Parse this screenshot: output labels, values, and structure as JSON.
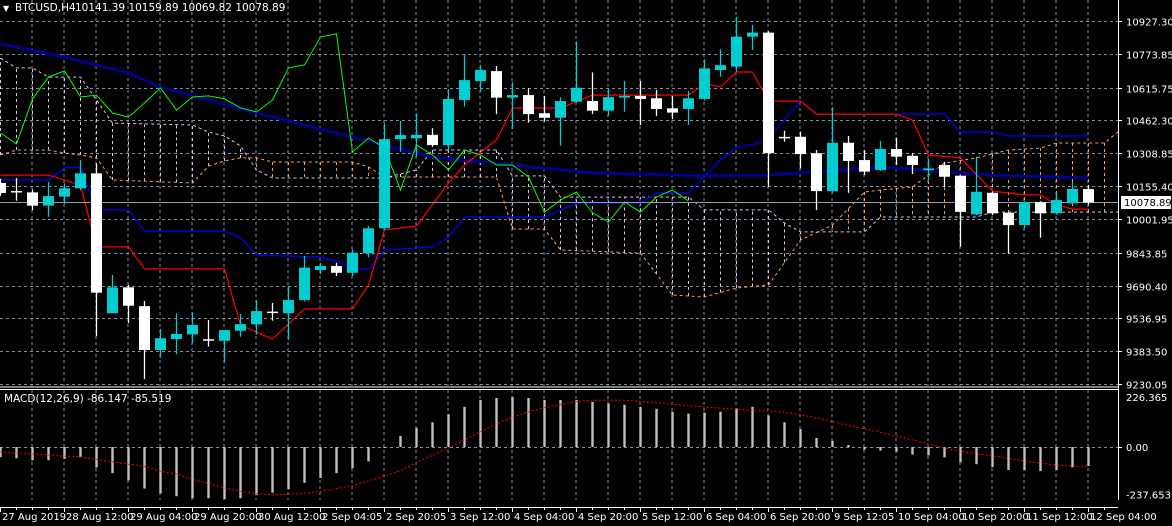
{
  "header": {
    "menu_icon": "triangle-down-icon",
    "symbol": "BTCUSD,H4",
    "ohlc": "10141.39 10159.89 10069.82 10078.89"
  },
  "colors": {
    "background": "#000000",
    "grid": "#7f8fa6",
    "bull_candle": "#00ced1",
    "bear_candle": "#ffffff",
    "moving_average": "#00008b",
    "tenkan": "#ff0000",
    "kijun": "#0000ff",
    "chikou": "#00ff00",
    "senkou_a": "#f4a460",
    "senkou_b": "#e6c3e6",
    "macd_histogram": "#c0c0c0",
    "macd_signal": "#ff0000",
    "price_line": "#8c9bb0"
  },
  "price_axis": {
    "labels": [
      "10927.30",
      "10773.85",
      "10615.75",
      "10462.30",
      "10308.85",
      "10155.40",
      "10001.95",
      "9843.85",
      "9690.40",
      "9536.95",
      "9383.50",
      "9230.05"
    ],
    "current_price": "10078.89"
  },
  "macd": {
    "label": "MACD(12,26,9) -86.147 -85.519",
    "axis_labels": {
      "max": "226.365",
      "zero": "0.00",
      "min": "-237.653"
    },
    "histogram": [
      -46,
      -51,
      -60,
      -60,
      -54,
      -46,
      -93,
      -118,
      -151,
      -188,
      -210,
      -223,
      -232,
      -232,
      -236,
      -232,
      -218,
      -207,
      -192,
      -162,
      -140,
      -118,
      -96,
      -65,
      -4,
      50,
      87,
      112,
      148,
      182,
      213,
      222,
      226,
      222,
      213,
      213,
      213,
      204,
      197,
      191,
      182,
      173,
      160,
      151,
      156,
      160,
      175,
      182,
      143,
      112,
      81,
      41,
      28,
      9,
      -12,
      -16,
      -21,
      -34,
      -38,
      -47,
      -69,
      -78,
      -91,
      -104,
      -104,
      -109,
      -104,
      -92,
      -86.147
    ],
    "signal": [
      -22,
      -27,
      -32,
      -37,
      -41,
      -44,
      -56,
      -67,
      -78,
      -88,
      -110,
      -122,
      -147,
      -165,
      -185,
      -200,
      -212,
      -216,
      -215,
      -209,
      -200,
      -188,
      -175,
      -154,
      -131,
      -107,
      -72,
      -37,
      -4,
      32,
      69,
      106,
      135,
      159,
      178,
      192,
      206,
      212,
      212,
      212,
      207,
      201,
      194,
      187,
      181,
      175,
      172,
      168,
      163,
      157,
      146,
      132,
      116,
      98,
      82,
      66,
      50,
      32,
      13,
      -4,
      -19,
      -31,
      -40,
      -51,
      -63,
      -74,
      -81,
      -88,
      -85.519
    ]
  },
  "time_axis": {
    "labels": [
      "27 Aug 2019",
      "28 Aug 12:00",
      "29 Aug 04:00",
      "29 Aug 20:00",
      "30 Aug 12:00",
      "2 Sep 04:05",
      "2 Sep 20:05",
      "3 Sep 12:00",
      "4 Sep 04:00",
      "4 Sep 20:00",
      "5 Sep 12:00",
      "6 Sep 04:00",
      "6 Sep 20:00",
      "9 Sep 12:05",
      "10 Sep 04:00",
      "10 Sep 20:00",
      "11 Sep 12:00",
      "12 Sep 04:00"
    ]
  },
  "chart_data": {
    "type": "candlestick",
    "symbol": "BTCUSD",
    "timeframe": "H4",
    "ylim": [
      9230.05,
      10927.3
    ],
    "grid": true,
    "candles_ohlc": [
      [
        10170,
        10190,
        10110,
        10123
      ],
      [
        10129,
        10193,
        10087,
        10129
      ],
      [
        10126,
        10140,
        10043,
        10064
      ],
      [
        10064,
        10176,
        10012,
        10109
      ],
      [
        10106,
        10168,
        10071,
        10145
      ],
      [
        10145,
        10277,
        10137,
        10215
      ],
      [
        10215,
        10262,
        9454,
        9657
      ],
      [
        9561,
        9740,
        9561,
        9682
      ],
      [
        9682,
        9693,
        9515,
        9596
      ],
      [
        9594,
        9618,
        9253,
        9389
      ],
      [
        9389,
        9487,
        9353,
        9444
      ],
      [
        9440,
        9560,
        9369,
        9464
      ],
      [
        9462,
        9565,
        9420,
        9506
      ],
      [
        9436,
        9529,
        9405,
        9436
      ],
      [
        9432,
        9482,
        9331,
        9482
      ],
      [
        9479,
        9557,
        9451,
        9510
      ],
      [
        9509,
        9623,
        9462,
        9571
      ],
      [
        9565,
        9609,
        9526,
        9565
      ],
      [
        9561,
        9689,
        9436,
        9623
      ],
      [
        9623,
        9828,
        9615,
        9774
      ],
      [
        9763,
        9797,
        9744,
        9782
      ],
      [
        9782,
        9797,
        9735,
        9750
      ],
      [
        9750,
        9860,
        9735,
        9844
      ],
      [
        9841,
        9969,
        9822,
        9958
      ],
      [
        9958,
        10449,
        9950,
        10375
      ],
      [
        10375,
        10460,
        10316,
        10394
      ],
      [
        10379,
        10496,
        10293,
        10395
      ],
      [
        10395,
        10426,
        10339,
        10347
      ],
      [
        10347,
        10609,
        10320,
        10563
      ],
      [
        10558,
        10773,
        10527,
        10651
      ],
      [
        10646,
        10721,
        10597,
        10698
      ],
      [
        10693,
        10717,
        10492,
        10569
      ],
      [
        10569,
        10641,
        10422,
        10581
      ],
      [
        10581,
        10613,
        10452,
        10492
      ],
      [
        10496,
        10577,
        10457,
        10475
      ],
      [
        10475,
        10571,
        10344,
        10553
      ],
      [
        10550,
        10831,
        10545,
        10615
      ],
      [
        10553,
        10687,
        10492,
        10508
      ],
      [
        10508,
        10613,
        10485,
        10571
      ],
      [
        10569,
        10647,
        10503,
        10577
      ],
      [
        10577,
        10647,
        10441,
        10563
      ],
      [
        10566,
        10605,
        10483,
        10516
      ],
      [
        10519,
        10577,
        10468,
        10499
      ],
      [
        10516,
        10600,
        10441,
        10566
      ],
      [
        10563,
        10748,
        10555,
        10706
      ],
      [
        10698,
        10795,
        10667,
        10721
      ],
      [
        10714,
        10947,
        10690,
        10854
      ],
      [
        10854,
        10909,
        10792,
        10873
      ],
      [
        10873,
        10880,
        10152,
        10309
      ],
      [
        10382,
        10414,
        10363,
        10382
      ],
      [
        10386,
        10410,
        10238,
        10305
      ],
      [
        10309,
        10324,
        10043,
        10132
      ],
      [
        10132,
        10524,
        10125,
        10358
      ],
      [
        10358,
        10390,
        10124,
        10273
      ],
      [
        10277,
        10324,
        10207,
        10223
      ],
      [
        10231,
        10366,
        10226,
        10329
      ],
      [
        10329,
        10382,
        10254,
        10293
      ],
      [
        10297,
        10309,
        10212,
        10254
      ],
      [
        10230,
        10282,
        10184,
        10238
      ],
      [
        10254,
        10269,
        10152,
        10199
      ],
      [
        10204,
        10204,
        9872,
        10035
      ],
      [
        10023,
        10293,
        10020,
        10129
      ],
      [
        10124,
        10130,
        10020,
        10028
      ],
      [
        10031,
        10031,
        9841,
        9973
      ],
      [
        9973,
        10085,
        9958,
        10080
      ],
      [
        10080,
        10085,
        9914,
        10028
      ],
      [
        10028,
        10122,
        10022,
        10090
      ],
      [
        10075,
        10176,
        10070,
        10142
      ],
      [
        10141.39,
        10159.89,
        10069.82,
        10078.89
      ]
    ],
    "moving_average": [
      [
        0,
        10820
      ],
      [
        4,
        10759
      ],
      [
        8,
        10684
      ],
      [
        10,
        10619
      ],
      [
        16,
        10497
      ],
      [
        24,
        10347
      ],
      [
        27,
        10291
      ],
      [
        37,
        10217
      ],
      [
        44,
        10203
      ],
      [
        48,
        10207
      ],
      [
        55,
        10245
      ],
      [
        62,
        10207
      ],
      [
        68,
        10193
      ]
    ],
    "tenkan": [
      [
        0,
        10207
      ],
      [
        3,
        10207
      ],
      [
        5,
        10160
      ],
      [
        6,
        9871
      ],
      [
        8,
        9871
      ],
      [
        9,
        9768
      ],
      [
        14,
        9768
      ],
      [
        15,
        9506
      ],
      [
        17,
        9440
      ],
      [
        18,
        9510
      ],
      [
        19,
        9581
      ],
      [
        22,
        9581
      ],
      [
        23,
        9693
      ],
      [
        24,
        9950
      ],
      [
        26,
        9969
      ],
      [
        28,
        10170
      ],
      [
        29,
        10254
      ],
      [
        31,
        10371
      ],
      [
        32,
        10520
      ],
      [
        35,
        10520
      ],
      [
        37,
        10581
      ],
      [
        43,
        10581
      ],
      [
        44,
        10633
      ],
      [
        45,
        10619
      ],
      [
        46,
        10689
      ],
      [
        47,
        10689
      ],
      [
        48,
        10553
      ],
      [
        50,
        10553
      ],
      [
        51,
        10492
      ],
      [
        56,
        10492
      ],
      [
        57,
        10464
      ],
      [
        58,
        10301
      ],
      [
        60,
        10287
      ],
      [
        62,
        10132
      ],
      [
        64,
        10114
      ],
      [
        65,
        10114
      ],
      [
        66,
        10067
      ],
      [
        67,
        10048
      ],
      [
        68,
        10048
      ]
    ],
    "kijun": [
      [
        0,
        10184
      ],
      [
        3,
        10184
      ],
      [
        4,
        10240
      ],
      [
        5,
        10245
      ],
      [
        6,
        10043
      ],
      [
        8,
        10043
      ],
      [
        9,
        9945
      ],
      [
        14,
        9945
      ],
      [
        15,
        9913
      ],
      [
        16,
        9833
      ],
      [
        20,
        9824
      ],
      [
        21,
        9805
      ],
      [
        22,
        9768
      ],
      [
        23,
        9768
      ],
      [
        24,
        9857
      ],
      [
        27,
        9871
      ],
      [
        28,
        9917
      ],
      [
        29,
        10011
      ],
      [
        34,
        10011
      ],
      [
        35,
        10043
      ],
      [
        36,
        10076
      ],
      [
        40,
        10076
      ],
      [
        41,
        10123
      ],
      [
        43,
        10123
      ],
      [
        45,
        10277
      ],
      [
        46,
        10338
      ],
      [
        47,
        10347
      ],
      [
        48,
        10380
      ],
      [
        50,
        10553
      ],
      [
        51,
        10492
      ],
      [
        59,
        10492
      ],
      [
        60,
        10408
      ],
      [
        62,
        10408
      ],
      [
        63,
        10390
      ],
      [
        68,
        10390
      ]
    ],
    "chikou": [
      [
        0,
        10404
      ],
      [
        1,
        10352
      ],
      [
        2,
        10563
      ],
      [
        3,
        10665
      ],
      [
        4,
        10694
      ],
      [
        5,
        10572
      ],
      [
        6,
        10581
      ],
      [
        7,
        10497
      ],
      [
        8,
        10478
      ],
      [
        9,
        10544
      ],
      [
        10,
        10614
      ],
      [
        11,
        10511
      ],
      [
        12,
        10572
      ],
      [
        13,
        10577
      ],
      [
        14,
        10563
      ],
      [
        15,
        10521
      ],
      [
        16,
        10502
      ],
      [
        17,
        10558
      ],
      [
        18,
        10708
      ],
      [
        19,
        10722
      ],
      [
        20,
        10853
      ],
      [
        21,
        10867
      ],
      [
        22,
        10315
      ],
      [
        23,
        10380
      ],
      [
        24,
        10334
      ],
      [
        25,
        10137
      ],
      [
        26,
        10348
      ],
      [
        27,
        10301
      ],
      [
        28,
        10231
      ],
      [
        29,
        10324
      ],
      [
        30,
        10301
      ],
      [
        31,
        10254
      ],
      [
        32,
        10254
      ],
      [
        33,
        10198
      ],
      [
        34,
        10034
      ],
      [
        35,
        10090
      ],
      [
        36,
        10128
      ],
      [
        37,
        10030
      ],
      [
        38,
        9988
      ],
      [
        39,
        10081
      ],
      [
        40,
        10034
      ],
      [
        41,
        10104
      ],
      [
        42,
        10137
      ],
      [
        43,
        10086
      ]
    ],
    "senkou_a": [
      [
        0,
        10301
      ],
      [
        1,
        10324
      ],
      [
        3,
        10324
      ],
      [
        4,
        10310
      ],
      [
        5,
        10301
      ],
      [
        6,
        10287
      ],
      [
        7,
        10184
      ],
      [
        12,
        10170
      ],
      [
        13,
        10249
      ],
      [
        14,
        10273
      ],
      [
        15,
        10287
      ],
      [
        16,
        10287
      ],
      [
        17,
        10268
      ],
      [
        22,
        10268
      ],
      [
        23,
        10245
      ],
      [
        24,
        10198
      ],
      [
        31,
        10198
      ],
      [
        32,
        9955
      ],
      [
        34,
        9955
      ],
      [
        35,
        9857
      ],
      [
        40,
        9842
      ],
      [
        42,
        9646
      ],
      [
        44,
        9637
      ],
      [
        46,
        9679
      ],
      [
        48,
        9693
      ],
      [
        50,
        9903
      ],
      [
        52,
        9973
      ],
      [
        54,
        10128
      ],
      [
        55,
        10137
      ],
      [
        57,
        10151
      ],
      [
        59,
        10263
      ],
      [
        61,
        10287
      ],
      [
        63,
        10324
      ],
      [
        65,
        10333
      ],
      [
        66,
        10357
      ],
      [
        69,
        10357
      ],
      [
        70,
        10418
      ]
    ],
    "senkou_b": [
      [
        0,
        10754
      ],
      [
        1,
        10708
      ],
      [
        2,
        10708
      ],
      [
        3,
        10665
      ],
      [
        5,
        10665
      ],
      [
        6,
        10558
      ],
      [
        7,
        10450
      ],
      [
        12,
        10441
      ],
      [
        13,
        10408
      ],
      [
        14,
        10390
      ],
      [
        15,
        10343
      ],
      [
        16,
        10231
      ],
      [
        17,
        10193
      ],
      [
        24,
        10193
      ],
      [
        26,
        10231
      ],
      [
        27,
        10324
      ],
      [
        31,
        10324
      ],
      [
        32,
        10203
      ],
      [
        34,
        10203
      ],
      [
        35,
        10104
      ],
      [
        43,
        10104
      ],
      [
        44,
        10044
      ],
      [
        48,
        10044
      ],
      [
        49,
        9983
      ],
      [
        50,
        9941
      ],
      [
        54,
        9941
      ],
      [
        55,
        10011
      ],
      [
        61,
        10011
      ],
      [
        62,
        10034
      ],
      [
        70,
        10034
      ]
    ]
  }
}
